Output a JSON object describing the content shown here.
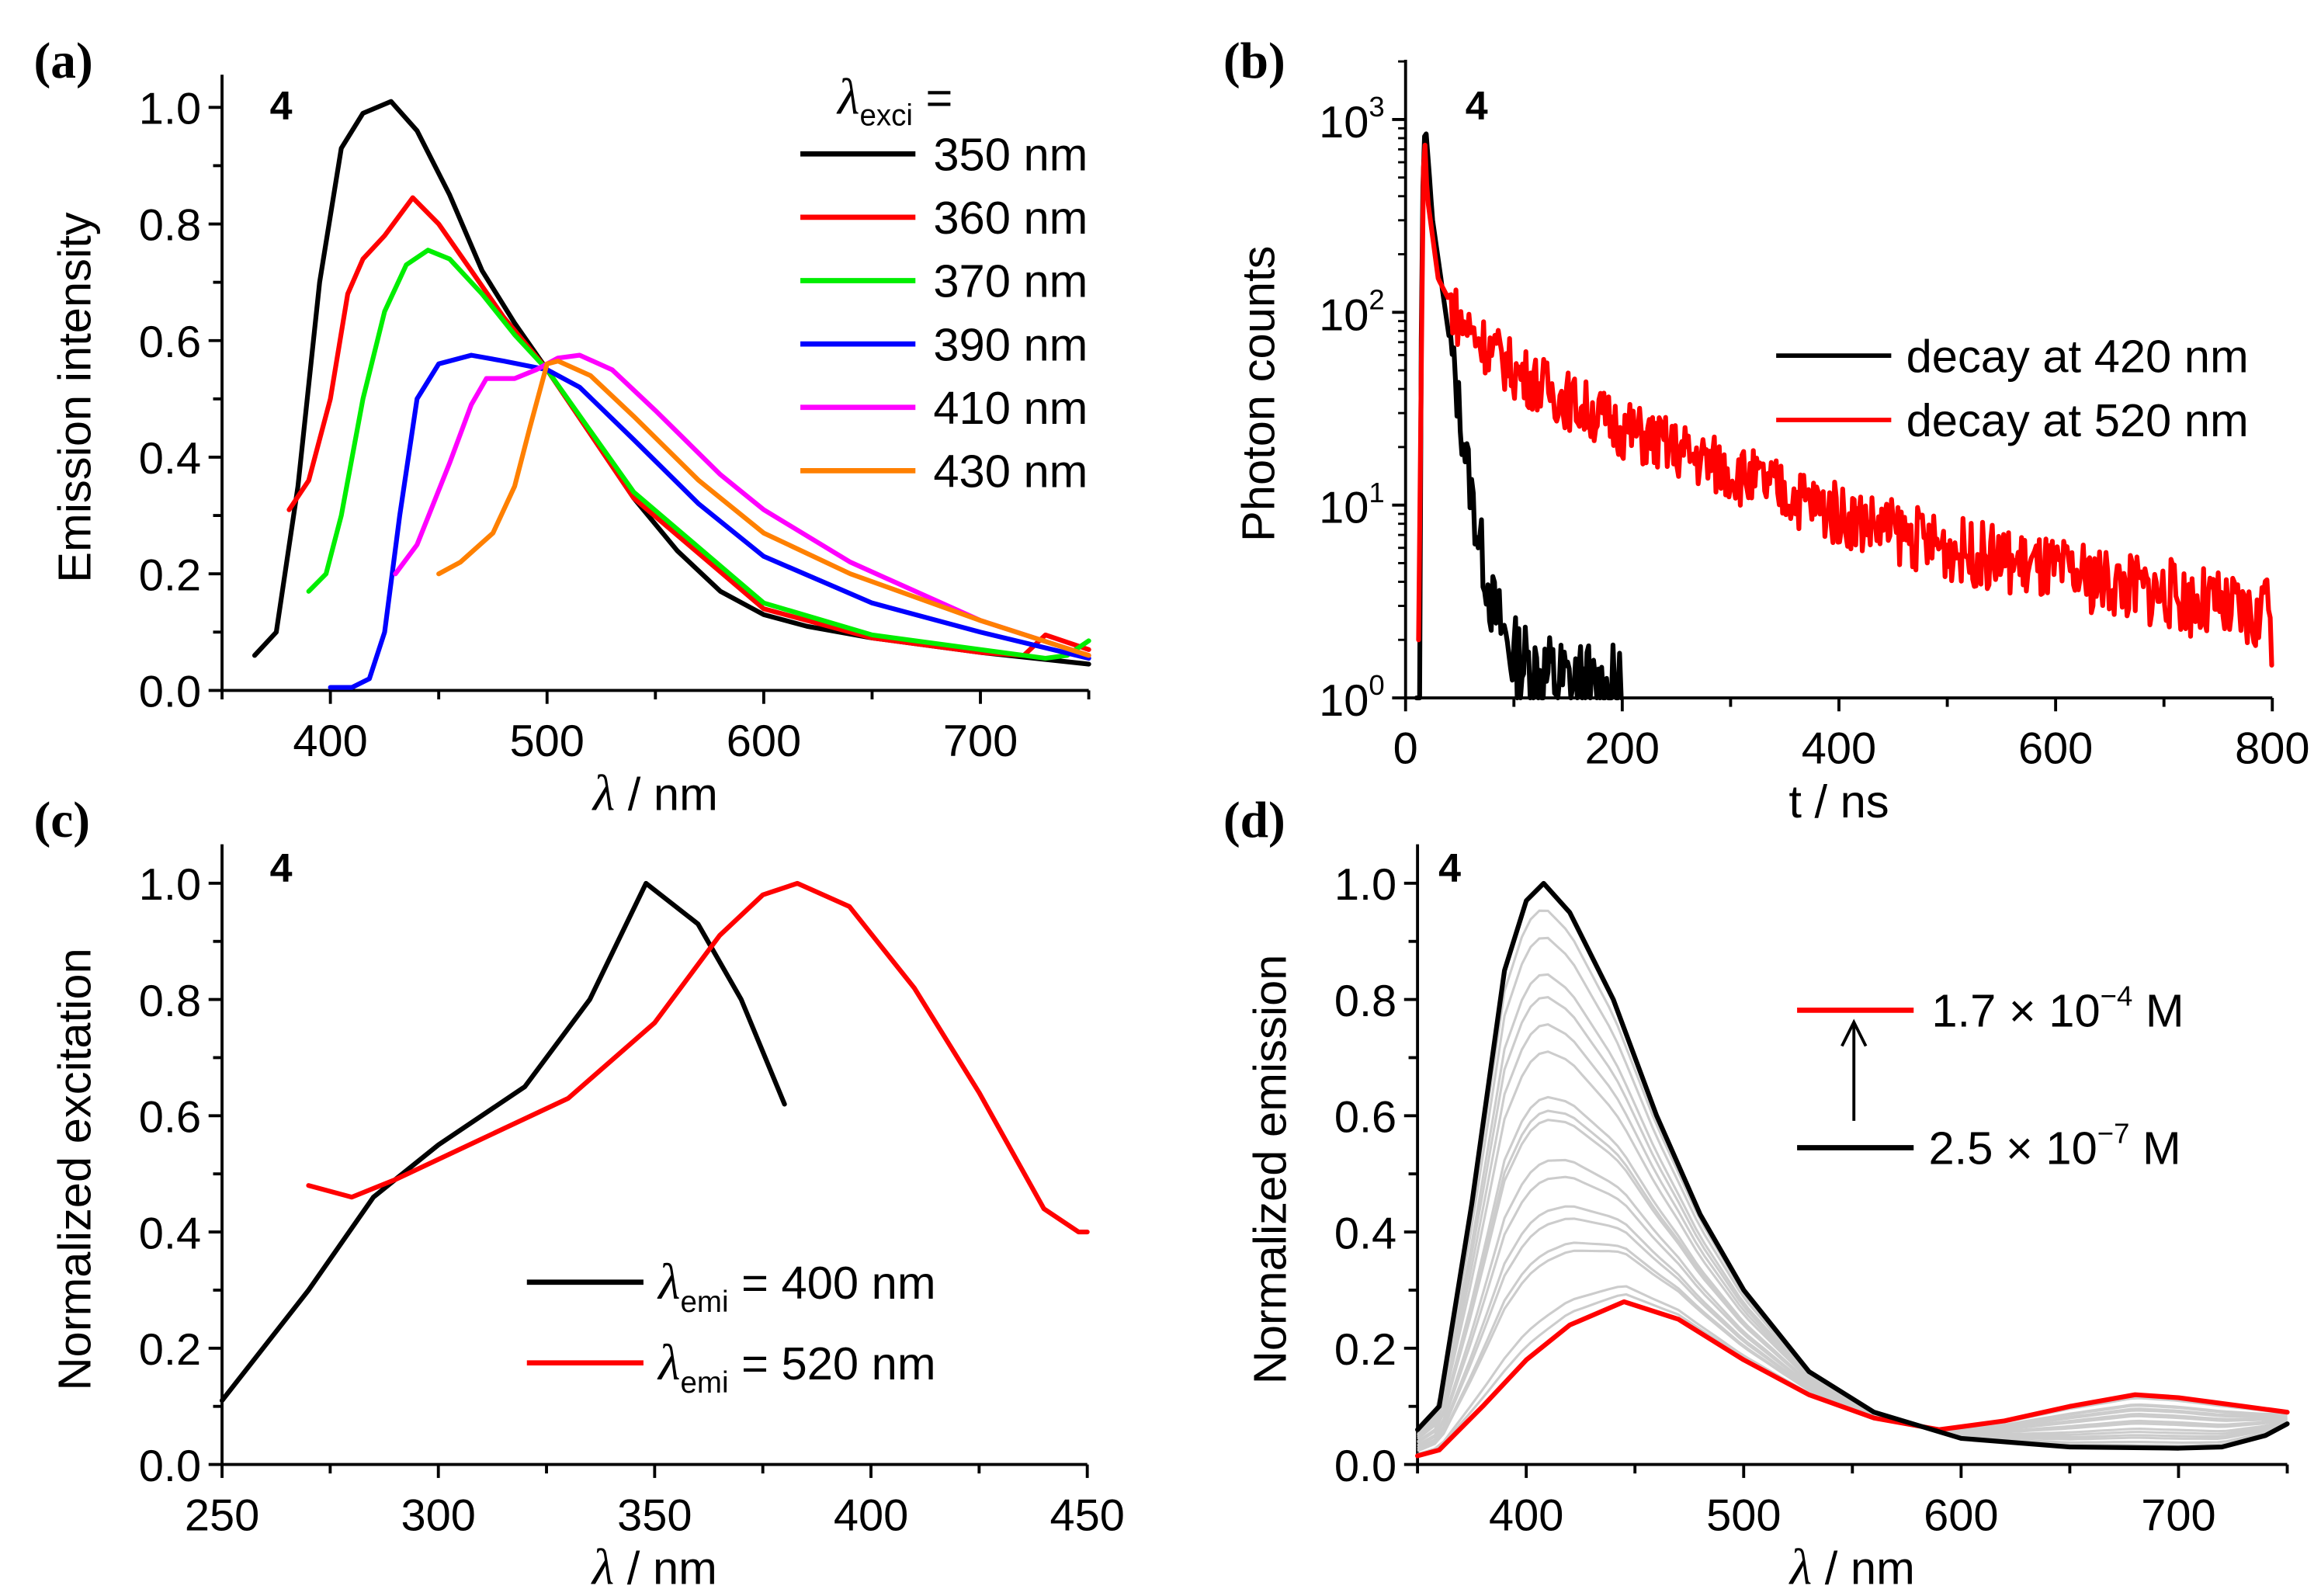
{
  "chart_data": [
    {
      "id": "a",
      "type": "line",
      "panel_label": "(a)",
      "compound_label": "4",
      "xlabel_symbol": "λ",
      "xlabel_unit": " / nm",
      "ylabel": "Emission intensity",
      "xlim": [
        350,
        750
      ],
      "ylim": [
        0,
        1.056
      ],
      "xticks": [
        400,
        500,
        600,
        700
      ],
      "yticks": [
        0.0,
        0.2,
        0.4,
        0.6,
        0.8,
        1.0
      ],
      "legend_title_symbol": "λ",
      "legend_title_sub": "exci",
      "legend_title_eq": " =",
      "legend_position": "top-right",
      "series": [
        {
          "name": "350 nm",
          "color": "#000000",
          "points": [
            [
              365,
              0.06
            ],
            [
              375,
              0.1
            ],
            [
              385,
              0.35
            ],
            [
              395,
              0.7
            ],
            [
              405,
              0.93
            ],
            [
              415,
              0.99
            ],
            [
              428,
              1.01
            ],
            [
              440,
              0.96
            ],
            [
              455,
              0.85
            ],
            [
              470,
              0.72
            ],
            [
              485,
              0.63
            ],
            [
              500,
              0.55
            ],
            [
              520,
              0.44
            ],
            [
              540,
              0.33
            ],
            [
              560,
              0.24
            ],
            [
              580,
              0.17
            ],
            [
              600,
              0.13
            ],
            [
              620,
              0.11
            ],
            [
              650,
              0.09
            ],
            [
              700,
              0.065
            ],
            [
              750,
              0.045
            ]
          ]
        },
        {
          "name": "360 nm",
          "color": "#ff0000",
          "points": [
            [
              381,
              0.31
            ],
            [
              390,
              0.36
            ],
            [
              400,
              0.5
            ],
            [
              408,
              0.68
            ],
            [
              415,
              0.74
            ],
            [
              425,
              0.78
            ],
            [
              438,
              0.845
            ],
            [
              450,
              0.8
            ],
            [
              465,
              0.72
            ],
            [
              480,
              0.64
            ],
            [
              500,
              0.55
            ],
            [
              540,
              0.33
            ],
            [
              600,
              0.14
            ],
            [
              650,
              0.09
            ],
            [
              700,
              0.065
            ],
            [
              720,
              0.06
            ],
            [
              730,
              0.095
            ],
            [
              750,
              0.07
            ]
          ]
        },
        {
          "name": "370 nm",
          "color": "#00ee00",
          "points": [
            [
              390,
              0.17
            ],
            [
              398,
              0.2
            ],
            [
              405,
              0.3
            ],
            [
              415,
              0.5
            ],
            [
              425,
              0.65
            ],
            [
              435,
              0.73
            ],
            [
              445,
              0.755
            ],
            [
              455,
              0.74
            ],
            [
              470,
              0.68
            ],
            [
              485,
              0.61
            ],
            [
              500,
              0.55
            ],
            [
              540,
              0.34
            ],
            [
              600,
              0.15
            ],
            [
              650,
              0.095
            ],
            [
              700,
              0.07
            ],
            [
              730,
              0.055
            ],
            [
              740,
              0.06
            ],
            [
              750,
              0.085
            ]
          ]
        },
        {
          "name": "390 nm",
          "color": "#0000ff",
          "points": [
            [
              400,
              0.005
            ],
            [
              410,
              0.005
            ],
            [
              418,
              0.02
            ],
            [
              425,
              0.1
            ],
            [
              432,
              0.3
            ],
            [
              440,
              0.5
            ],
            [
              450,
              0.56
            ],
            [
              465,
              0.575
            ],
            [
              480,
              0.565
            ],
            [
              500,
              0.55
            ],
            [
              515,
              0.52
            ],
            [
              540,
              0.43
            ],
            [
              570,
              0.32
            ],
            [
              600,
              0.23
            ],
            [
              650,
              0.15
            ],
            [
              700,
              0.1
            ],
            [
              750,
              0.055
            ]
          ]
        },
        {
          "name": "410 nm",
          "color": "#ff00ff",
          "points": [
            [
              430,
              0.2
            ],
            [
              440,
              0.25
            ],
            [
              455,
              0.39
            ],
            [
              465,
              0.49
            ],
            [
              472,
              0.535
            ],
            [
              485,
              0.535
            ],
            [
              495,
              0.55
            ],
            [
              505,
              0.57
            ],
            [
              515,
              0.575
            ],
            [
              530,
              0.55
            ],
            [
              550,
              0.48
            ],
            [
              580,
              0.37
            ],
            [
              600,
              0.31
            ],
            [
              640,
              0.22
            ],
            [
              700,
              0.12
            ],
            [
              750,
              0.06
            ]
          ]
        },
        {
          "name": "430 nm",
          "color": "#ff8000",
          "points": [
            [
              450,
              0.2
            ],
            [
              460,
              0.22
            ],
            [
              475,
              0.27
            ],
            [
              485,
              0.35
            ],
            [
              492,
              0.45
            ],
            [
              500,
              0.56
            ],
            [
              505,
              0.565
            ],
            [
              520,
              0.54
            ],
            [
              540,
              0.47
            ],
            [
              570,
              0.36
            ],
            [
              600,
              0.27
            ],
            [
              640,
              0.2
            ],
            [
              700,
              0.12
            ],
            [
              750,
              0.06
            ]
          ]
        }
      ]
    },
    {
      "id": "b",
      "type": "line",
      "panel_label": "(b)",
      "compound_label": "4",
      "yscale": "log",
      "xlabel": "t / ns",
      "ylabel": "Photon counts",
      "xlim": [
        0,
        800
      ],
      "ylim": [
        1,
        2040
      ],
      "xticks": [
        0,
        200,
        400,
        600,
        800
      ],
      "yticks": [
        1,
        10,
        100,
        1000
      ],
      "ytick_labels": [
        {
          "base": "10",
          "exp": "0"
        },
        {
          "base": "10",
          "exp": "1"
        },
        {
          "base": "10",
          "exp": "2"
        },
        {
          "base": "10",
          "exp": "3"
        }
      ],
      "legend_position": "right",
      "series": [
        {
          "name": "decay at 420 nm",
          "color": "#000000",
          "points": [
            [
              10,
              1
            ],
            [
              13,
              1
            ],
            [
              15,
              300
            ],
            [
              18,
              1000
            ],
            [
              25,
              300
            ],
            [
              35,
              120
            ],
            [
              50,
              30
            ],
            [
              65,
              8
            ],
            [
              80,
              3
            ],
            [
              100,
              1.6
            ],
            [
              130,
              1.3
            ],
            [
              160,
              1.1
            ],
            [
              200,
              1
            ]
          ]
        },
        {
          "name": "decay at 520 nm",
          "color": "#ff0000",
          "points": [
            [
              12,
              2
            ],
            [
              15,
              100
            ],
            [
              17,
              1000
            ],
            [
              20,
              400
            ],
            [
              30,
              150
            ],
            [
              50,
              90
            ],
            [
              100,
              50
            ],
            [
              150,
              35
            ],
            [
              200,
              25
            ],
            [
              300,
              15
            ],
            [
              400,
              9
            ],
            [
              500,
              6
            ],
            [
              600,
              4.5
            ],
            [
              700,
              3.5
            ],
            [
              790,
              2.5
            ],
            [
              795,
              6
            ],
            [
              800,
              1
            ]
          ]
        }
      ]
    },
    {
      "id": "c",
      "type": "line",
      "panel_label": "(c)",
      "compound_label": "4",
      "xlabel_symbol": "λ",
      "xlabel_unit": " / nm",
      "ylabel": "Normalized excitation",
      "xlim": [
        250,
        450
      ],
      "ylim": [
        0,
        1.067
      ],
      "xticks": [
        250,
        300,
        350,
        400,
        450
      ],
      "yticks": [
        0.0,
        0.2,
        0.4,
        0.6,
        0.8,
        1.0
      ],
      "legend_position": "bottom-right",
      "series": [
        {
          "name": "λemi = 400 nm",
          "symbol": "λ",
          "sub": "emi",
          "rest": " = 400 nm",
          "color": "#000000",
          "points": [
            [
              250,
              0.11
            ],
            [
              270,
              0.3
            ],
            [
              285,
              0.46
            ],
            [
              300,
              0.55
            ],
            [
              320,
              0.65
            ],
            [
              335,
              0.8
            ],
            [
              348,
              1.0
            ],
            [
              360,
              0.93
            ],
            [
              370,
              0.8
            ],
            [
              380,
              0.62
            ]
          ]
        },
        {
          "name": "λemi = 520 nm",
          "symbol": "λ",
          "sub": "emi",
          "rest": " = 520 nm",
          "color": "#ff0000",
          "points": [
            [
              270,
              0.48
            ],
            [
              280,
              0.46
            ],
            [
              290,
              0.49
            ],
            [
              310,
              0.56
            ],
            [
              330,
              0.63
            ],
            [
              350,
              0.76
            ],
            [
              365,
              0.91
            ],
            [
              375,
              0.98
            ],
            [
              383,
              1.0
            ],
            [
              395,
              0.96
            ],
            [
              410,
              0.82
            ],
            [
              425,
              0.64
            ],
            [
              440,
              0.44
            ],
            [
              448,
              0.4
            ],
            [
              450,
              0.4
            ]
          ]
        }
      ]
    },
    {
      "id": "d",
      "type": "line",
      "panel_label": "(d)",
      "compound_label": "4",
      "xlabel_symbol": "λ",
      "xlabel_unit": " / nm",
      "ylabel": "Normalized emission",
      "xlim": [
        350,
        750
      ],
      "ylim": [
        0,
        1.067
      ],
      "xticks": [
        400,
        500,
        600,
        700
      ],
      "yticks": [
        0.0,
        0.2,
        0.4,
        0.6,
        0.8,
        1.0
      ],
      "legend_position": "top-right",
      "series": [
        {
          "name": "2.5 × 10^-7 M",
          "mant": "2.5 × 10",
          "exp": "−7",
          "unit": " M",
          "color": "#000000",
          "points": [
            [
              350,
              0.06
            ],
            [
              360,
              0.1
            ],
            [
              375,
              0.45
            ],
            [
              390,
              0.85
            ],
            [
              400,
              0.97
            ],
            [
              408,
              1.0
            ],
            [
              420,
              0.95
            ],
            [
              440,
              0.8
            ],
            [
              460,
              0.6
            ],
            [
              480,
              0.43
            ],
            [
              500,
              0.3
            ],
            [
              530,
              0.16
            ],
            [
              560,
              0.09
            ],
            [
              600,
              0.045
            ],
            [
              650,
              0.03
            ],
            [
              700,
              0.028
            ],
            [
              720,
              0.03
            ],
            [
              740,
              0.05
            ],
            [
              750,
              0.07
            ]
          ]
        },
        {
          "name": "1.7 × 10^-4 M",
          "mant": "1.7 × 10",
          "exp": "−4",
          "unit": " M",
          "color": "#ff0000",
          "points": [
            [
              350,
              0.015
            ],
            [
              360,
              0.025
            ],
            [
              380,
              0.1
            ],
            [
              400,
              0.18
            ],
            [
              420,
              0.24
            ],
            [
              445,
              0.28
            ],
            [
              470,
              0.25
            ],
            [
              500,
              0.18
            ],
            [
              530,
              0.12
            ],
            [
              560,
              0.08
            ],
            [
              590,
              0.06
            ],
            [
              620,
              0.075
            ],
            [
              650,
              0.1
            ],
            [
              680,
              0.12
            ],
            [
              700,
              0.115
            ],
            [
              730,
              0.1
            ],
            [
              750,
              0.09
            ]
          ]
        }
      ],
      "intermediate_color": "#cccccc",
      "intermediate_mix": [
        0.05,
        0.11,
        0.19,
        0.24,
        0.3,
        0.36,
        0.46,
        0.49,
        0.51,
        0.6,
        0.64,
        0.71,
        0.74,
        0.8,
        0.82,
        0.94,
        0.97
      ]
    }
  ]
}
